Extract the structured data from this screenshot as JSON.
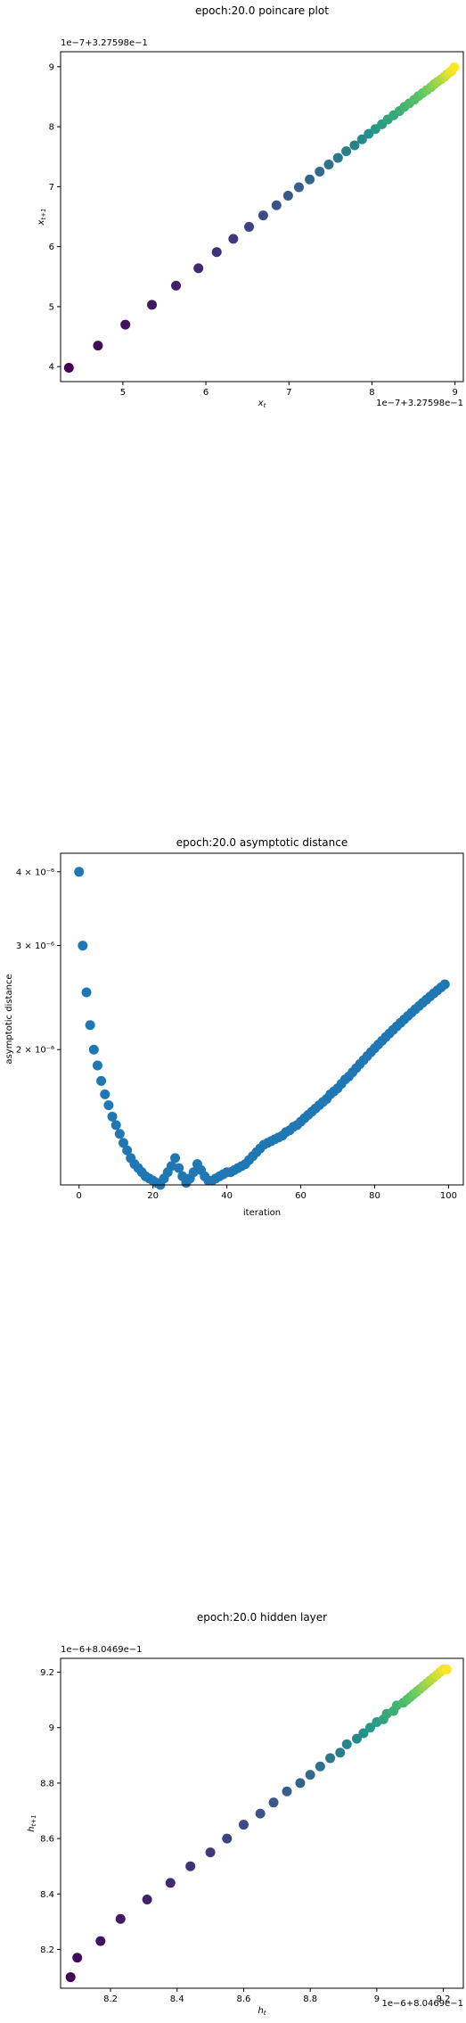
{
  "chart_data": [
    {
      "type": "scatter",
      "title": "epoch:20.0 poincare plot",
      "xlabel": "x_t",
      "ylabel": "x_{t+1}",
      "x_offset_text": "1e−7+3.27598e−1",
      "y_offset_text": "1e−7+3.27598e−1",
      "xlim": [
        4.25,
        9.1
      ],
      "ylim": [
        3.75,
        9.25
      ],
      "xticks": [
        5,
        6,
        7,
        8,
        9
      ],
      "yticks": [
        4,
        5,
        6,
        7,
        8,
        9
      ],
      "colormap": [
        "#440154",
        "#3b528b",
        "#21918c",
        "#5ec962",
        "#fde725"
      ],
      "x": [
        4.35,
        4.7,
        5.03,
        5.35,
        5.64,
        5.91,
        6.13,
        6.33,
        6.52,
        6.69,
        6.85,
        6.99,
        7.12,
        7.25,
        7.37,
        7.48,
        7.59,
        7.69,
        7.79,
        7.88,
        7.96,
        8.04,
        8.12,
        8.19,
        8.26,
        8.33,
        8.39,
        8.45,
        8.51,
        8.56,
        8.61,
        8.66,
        8.71,
        8.75,
        8.79,
        8.83,
        8.87,
        8.9,
        8.93,
        8.96,
        8.99
      ],
      "y": [
        3.98,
        4.35,
        4.7,
        5.03,
        5.35,
        5.64,
        5.91,
        6.13,
        6.33,
        6.52,
        6.69,
        6.85,
        6.99,
        7.12,
        7.25,
        7.37,
        7.48,
        7.59,
        7.69,
        7.79,
        7.88,
        7.96,
        8.04,
        8.12,
        8.19,
        8.26,
        8.33,
        8.39,
        8.45,
        8.51,
        8.56,
        8.61,
        8.66,
        8.71,
        8.75,
        8.79,
        8.83,
        8.87,
        8.9,
        8.93,
        8.99
      ]
    },
    {
      "type": "scatter",
      "title": "epoch:20.0 asymptotic distance",
      "xlabel": "iteration",
      "ylabel": "asymptotic distance",
      "y_scale": "log",
      "xlim": [
        -5,
        104
      ],
      "ylim": [
        1.18e-06,
        4.3e-06
      ],
      "xticks": [
        0,
        20,
        40,
        60,
        80,
        100
      ],
      "yticks": [
        2e-06,
        3e-06,
        4e-06
      ],
      "yticklabels": [
        "2 × 10⁻⁶",
        "3 × 10⁻⁶",
        "4 × 10⁻⁶"
      ],
      "color": "#1f77b4",
      "x": [
        0,
        1,
        2,
        3,
        4,
        5,
        6,
        7,
        8,
        9,
        10,
        11,
        12,
        13,
        14,
        15,
        16,
        17,
        18,
        19,
        20,
        21,
        22,
        23,
        24,
        25,
        26,
        27,
        28,
        29,
        30,
        31,
        32,
        33,
        34,
        35,
        36,
        37,
        38,
        39,
        40,
        41,
        42,
        43,
        44,
        45,
        46,
        47,
        48,
        49,
        50,
        51,
        52,
        53,
        54,
        55,
        56,
        57,
        58,
        59,
        60,
        61,
        62,
        63,
        64,
        65,
        66,
        67,
        68,
        69,
        70,
        71,
        72,
        73,
        74,
        75,
        76,
        77,
        78,
        79,
        80,
        81,
        82,
        83,
        84,
        85,
        86,
        87,
        88,
        89,
        90,
        91,
        92,
        93,
        94,
        95,
        96,
        97,
        98,
        99
      ],
      "y": [
        4e-06,
        3e-06,
        2.5e-06,
        2.2e-06,
        2e-06,
        1.88e-06,
        1.77e-06,
        1.68e-06,
        1.61e-06,
        1.54e-06,
        1.49e-06,
        1.44e-06,
        1.39e-06,
        1.35e-06,
        1.31e-06,
        1.28e-06,
        1.26e-06,
        1.24e-06,
        1.22e-06,
        1.21e-06,
        1.2e-06,
        1.19e-06,
        1.18e-06,
        1.21e-06,
        1.24e-06,
        1.27e-06,
        1.31e-06,
        1.26e-06,
        1.22e-06,
        1.19e-06,
        1.21e-06,
        1.24e-06,
        1.28e-06,
        1.25e-06,
        1.22e-06,
        1.2e-06,
        1.2e-06,
        1.21e-06,
        1.22e-06,
        1.23e-06,
        1.24e-06,
        1.24e-06,
        1.25e-06,
        1.26e-06,
        1.27e-06,
        1.28e-06,
        1.3e-06,
        1.32e-06,
        1.34e-06,
        1.36e-06,
        1.38e-06,
        1.39e-06,
        1.4e-06,
        1.41e-06,
        1.42e-06,
        1.43e-06,
        1.45e-06,
        1.46e-06,
        1.48e-06,
        1.49e-06,
        1.51e-06,
        1.53e-06,
        1.55e-06,
        1.57e-06,
        1.59e-06,
        1.61e-06,
        1.63e-06,
        1.65e-06,
        1.68e-06,
        1.7e-06,
        1.72e-06,
        1.75e-06,
        1.78e-06,
        1.8e-06,
        1.83e-06,
        1.86e-06,
        1.89e-06,
        1.92e-06,
        1.95e-06,
        1.98e-06,
        2.01e-06,
        2.04e-06,
        2.07e-06,
        2.1e-06,
        2.13e-06,
        2.16e-06,
        2.19e-06,
        2.22e-06,
        2.25e-06,
        2.28e-06,
        2.31e-06,
        2.34e-06,
        2.37e-06,
        2.4e-06,
        2.43e-06,
        2.46e-06,
        2.49e-06,
        2.52e-06,
        2.55e-06,
        2.58e-06
      ]
    },
    {
      "type": "scatter",
      "title": "epoch:20.0 hidden layer",
      "xlabel": "h_t",
      "ylabel": "h_{t+1}",
      "x_offset_text": "1e−6+8.0469e−1",
      "y_offset_text": "1e−6+8.0469e−1",
      "xlim": [
        8.05,
        9.26
      ],
      "ylim": [
        8.06,
        9.25
      ],
      "xticks": [
        8.2,
        8.4,
        8.6,
        8.8,
        9.0,
        9.2
      ],
      "yticks": [
        8.2,
        8.4,
        8.6,
        8.8,
        9.0,
        9.2
      ],
      "colormap": [
        "#440154",
        "#3b528b",
        "#21918c",
        "#5ec962",
        "#fde725"
      ],
      "x": [
        8.08,
        8.1,
        8.17,
        8.23,
        8.31,
        8.38,
        8.44,
        8.5,
        8.55,
        8.6,
        8.65,
        8.69,
        8.73,
        8.77,
        8.8,
        8.83,
        8.86,
        8.89,
        8.91,
        8.94,
        8.96,
        8.98,
        9.0,
        9.02,
        9.03,
        9.05,
        9.06,
        9.08,
        9.09,
        9.1,
        9.11,
        9.12,
        9.13,
        9.14,
        9.15,
        9.16,
        9.17,
        9.18,
        9.19,
        9.2,
        9.21
      ],
      "y": [
        8.1,
        8.17,
        8.23,
        8.31,
        8.38,
        8.44,
        8.5,
        8.55,
        8.6,
        8.65,
        8.69,
        8.73,
        8.77,
        8.8,
        8.83,
        8.86,
        8.89,
        8.91,
        8.94,
        8.96,
        8.98,
        9.0,
        9.02,
        9.03,
        9.05,
        9.06,
        9.08,
        9.09,
        9.1,
        9.11,
        9.12,
        9.13,
        9.14,
        9.15,
        9.16,
        9.17,
        9.18,
        9.19,
        9.2,
        9.21,
        9.21
      ]
    }
  ]
}
